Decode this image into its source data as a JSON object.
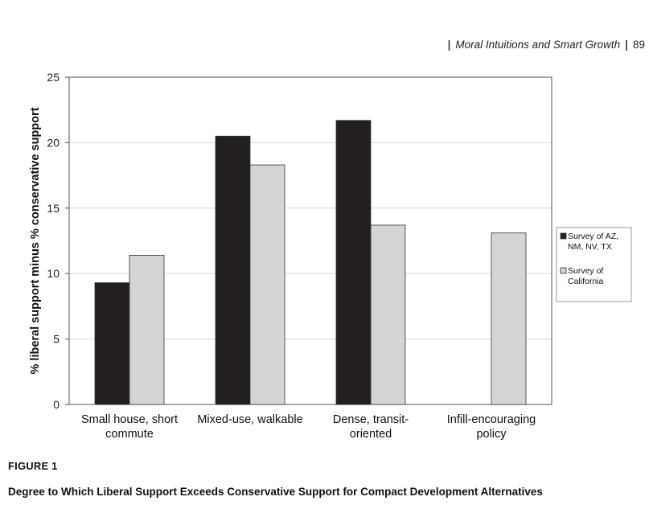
{
  "running_header": {
    "title": "Moral Intuitions and Smart Growth",
    "page_number": "89"
  },
  "figure": {
    "label": "FIGURE 1",
    "caption": "Degree to Which Liberal Support Exceeds Conservative Support for Compact Development Alternatives"
  },
  "colors": {
    "series_1": "#231f20",
    "series_2": "#d4d4d4",
    "axis": "#555555",
    "grid": "#d8d8d8"
  },
  "chart_data": {
    "type": "bar",
    "title": "",
    "xlabel": "",
    "ylabel": "% liberal support  minus % conservative support",
    "ylim": [
      0,
      25
    ],
    "yticks": [
      0,
      5,
      10,
      15,
      20,
      25
    ],
    "grid": true,
    "legend_position": "right",
    "categories": [
      [
        "Small house, short",
        "commute"
      ],
      [
        "Mixed-use, walkable"
      ],
      [
        "Dense, transit-",
        "oriented"
      ],
      [
        "Infill-encouraging",
        "policy"
      ]
    ],
    "series": [
      {
        "name": [
          "Survey of AZ,",
          "NM, NV, TX"
        ],
        "values": [
          9.3,
          20.5,
          21.7,
          null
        ]
      },
      {
        "name": [
          "Survey of",
          "California"
        ],
        "values": [
          11.4,
          18.3,
          13.7,
          13.1
        ]
      }
    ]
  }
}
